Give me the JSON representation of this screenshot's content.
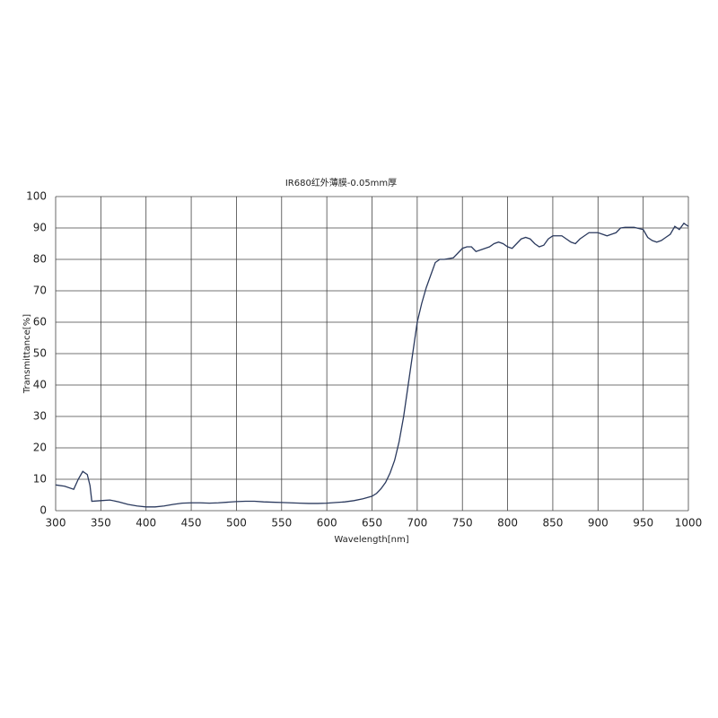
{
  "chart_data": {
    "type": "line",
    "title": "IR680红外薄膜-0.05mm厚",
    "x_label": "Wavelength[nm]",
    "y_label": "Transmittance[%]",
    "series": [
      {
        "color": "#2b3a5e",
        "x": [
          300,
          310,
          320,
          325,
          330,
          335,
          338,
          340,
          350,
          360,
          370,
          380,
          390,
          400,
          410,
          420,
          430,
          440,
          450,
          460,
          470,
          480,
          490,
          500,
          510,
          520,
          530,
          540,
          550,
          560,
          570,
          580,
          590,
          600,
          610,
          620,
          630,
          640,
          650,
          655,
          660,
          665,
          670,
          675,
          680,
          685,
          690,
          695,
          700,
          705,
          710,
          715,
          720,
          725,
          730,
          740,
          745,
          750,
          755,
          760,
          765,
          770,
          775,
          780,
          785,
          790,
          795,
          800,
          805,
          810,
          815,
          820,
          825,
          830,
          835,
          840,
          845,
          850,
          860,
          865,
          870,
          875,
          880,
          885,
          890,
          895,
          900,
          905,
          910,
          915,
          920,
          925,
          930,
          940,
          950,
          955,
          960,
          965,
          970,
          975,
          980,
          985,
          990,
          995,
          1000
        ],
        "values": [
          8.2,
          7.8,
          6.8,
          10,
          12.5,
          11.5,
          8,
          3,
          3.2,
          3.4,
          2.8,
          2,
          1.5,
          1.2,
          1.2,
          1.5,
          2,
          2.4,
          2.5,
          2.5,
          2.4,
          2.5,
          2.7,
          2.9,
          3,
          3,
          2.8,
          2.7,
          2.6,
          2.5,
          2.4,
          2.3,
          2.3,
          2.4,
          2.6,
          2.8,
          3.2,
          3.8,
          4.6,
          5.5,
          7,
          9,
          12,
          16,
          22,
          30,
          40,
          50,
          60,
          66,
          71,
          75,
          79,
          80,
          80,
          80.5,
          82,
          83.5,
          84,
          84,
          82.5,
          83,
          83.5,
          84,
          85,
          85.5,
          85,
          84,
          83.5,
          85,
          86.5,
          87,
          86.5,
          85,
          84,
          84.5,
          86.5,
          87.5,
          87.5,
          86.5,
          85.5,
          85,
          86.5,
          87.5,
          88.5,
          88.5,
          88.5,
          88,
          87.5,
          88,
          88.5,
          90,
          90.2,
          90.2,
          89.5,
          87,
          86,
          85.5,
          86,
          87,
          88,
          90.5,
          89.5,
          91.5,
          90.5
        ]
      }
    ],
    "xlim": [
      300,
      1000
    ],
    "xticks": [
      300,
      350,
      400,
      450,
      500,
      550,
      600,
      650,
      700,
      750,
      800,
      850,
      900,
      950,
      1000
    ],
    "ylim": [
      0,
      100
    ],
    "yticks": [
      0,
      10,
      20,
      30,
      40,
      50,
      60,
      70,
      80,
      90,
      100
    ],
    "grid": true
  }
}
